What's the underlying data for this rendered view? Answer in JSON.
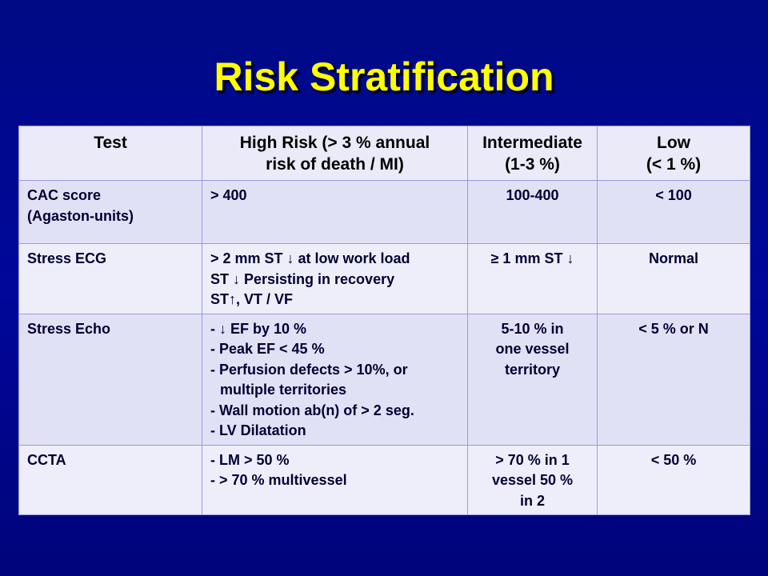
{
  "slide": {
    "title": "Risk Stratification"
  },
  "table": {
    "headers": {
      "test": "Test",
      "high": [
        "High Risk (> 3 % annual",
        "risk of death / MI)"
      ],
      "intermediate": [
        "Intermediate",
        "(1-3 %)"
      ],
      "low": [
        "Low",
        "(< 1 %)"
      ]
    },
    "rows": [
      {
        "test": [
          "CAC score",
          "(Agaston-units)"
        ],
        "high": [
          "> 400"
        ],
        "intermediate": [
          "100-400"
        ],
        "low": [
          "< 100"
        ]
      },
      {
        "test": [
          "Stress ECG"
        ],
        "high": [
          "> 2 mm ST ↓ at low work load",
          "ST ↓  Persisting in recovery",
          "ST↑, VT / VF"
        ],
        "intermediate": [
          "≥ 1 mm ST ↓"
        ],
        "low": [
          "Normal"
        ]
      },
      {
        "test": [
          "Stress Echo"
        ],
        "high": [
          "- ↓ EF by 10 %",
          "- Peak EF < 45 %",
          "- Perfusion defects > 10%, or",
          "multiple territories",
          "- Wall motion ab(n) of > 2 seg.",
          "- LV Dilatation"
        ],
        "intermediate": [
          "5-10 % in",
          "one vessel",
          "territory"
        ],
        "low": [
          "< 5 % or N"
        ]
      },
      {
        "test": [
          "CCTA"
        ],
        "high": [
          "- LM > 50 %",
          "- > 70 % multivessel"
        ],
        "intermediate": [
          "> 70 % in 1",
          "vessel 50 %",
          "in 2"
        ],
        "low": [
          "< 50 %"
        ]
      }
    ]
  }
}
